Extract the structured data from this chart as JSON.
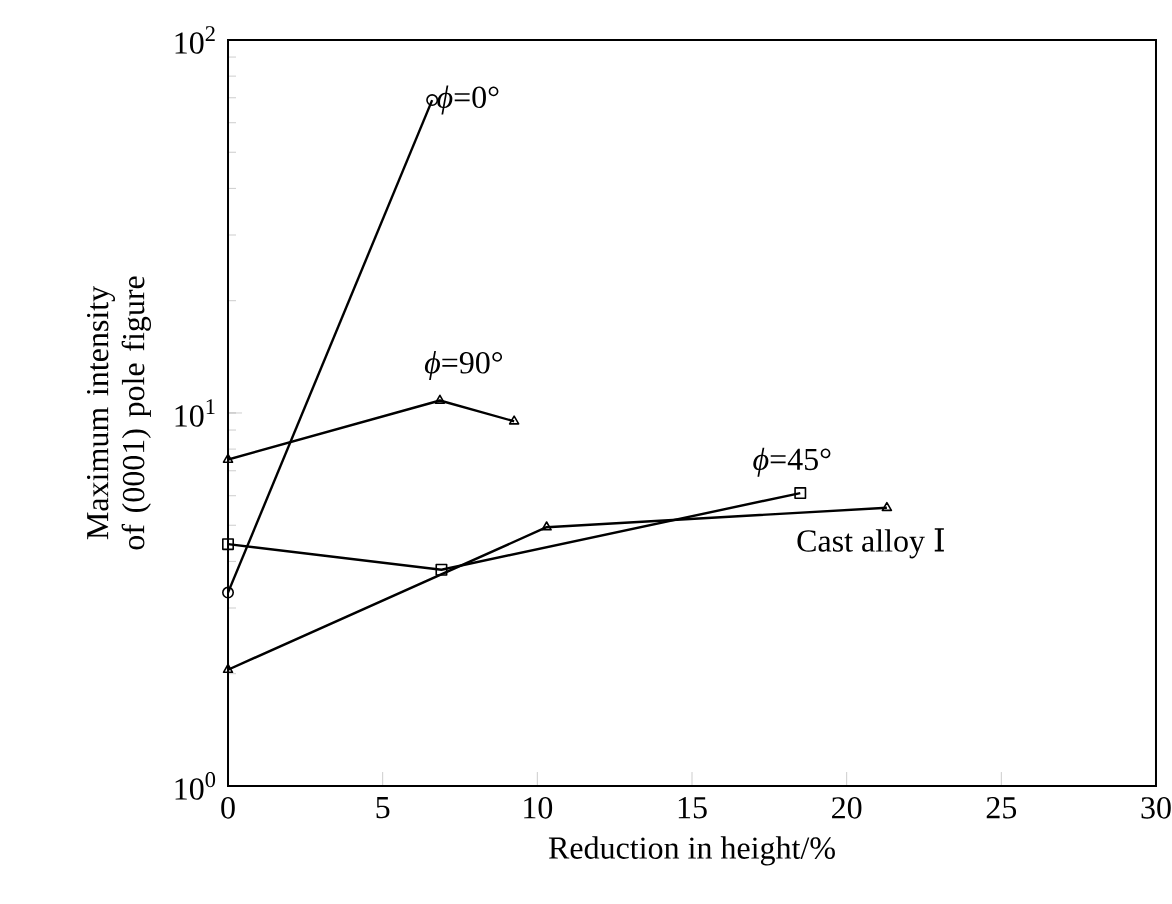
{
  "chart_data": {
    "type": "line",
    "xlabel": "Reduction in height/%",
    "ylabel": "Maximum intensity of (0001) pole figure",
    "log": "y",
    "xlim": [
      0,
      30
    ],
    "ylim": [
      1,
      100
    ],
    "xticks": [
      0,
      5,
      10,
      15,
      20,
      25,
      30
    ],
    "yticks": [
      {
        "value": 1,
        "label": "10$^{0}$"
      },
      {
        "value": 10,
        "label": "10$^{1}$"
      },
      {
        "value": 100,
        "label": "10$^{2}$"
      }
    ],
    "line_style": "solid",
    "series": [
      {
        "name": "*ϕ*=0°",
        "color": "#000000",
        "marker": "circle",
        "x": [
          0,
          6.6
        ],
        "values": [
          3.3,
          69
        ]
      },
      {
        "name": "*ϕ*=90°",
        "color": "#000000",
        "marker": "triangle",
        "x": [
          0,
          6.85,
          9.25
        ],
        "values": [
          7.5,
          10.8,
          9.5
        ]
      },
      {
        "name": "*ϕ*=45°",
        "color": "#000000",
        "marker": "square",
        "x": [
          0,
          6.9,
          18.5
        ],
        "values": [
          4.45,
          3.8,
          6.1
        ]
      },
      {
        "name": "Cast alloy Ⅰ",
        "color": "#000000",
        "marker": "triangle",
        "x": [
          0,
          10.3,
          21.3
        ],
        "values": [
          2.05,
          4.94,
          5.57
        ]
      }
    ]
  }
}
